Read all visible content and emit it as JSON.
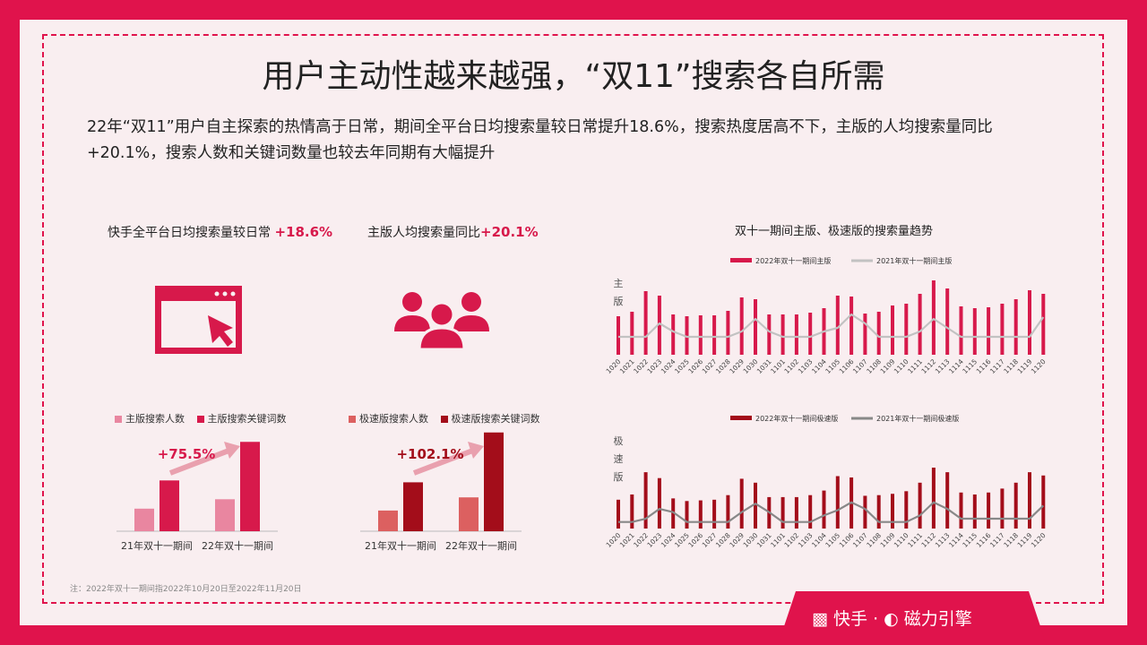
{
  "title": "用户主动性越来越强，“双11”搜索各自所需",
  "intro": "22年“双11”用户自主探索的热情高于日常，期间全平台日均搜索量较日常提升18.6%，搜索热度居高不下，主版的人均搜索量同比+20.1%，搜索人数和关键词数量也较去年同期有大幅提升",
  "kpi1": {
    "label": "快手全平台日均搜索量较日常 ",
    "value": "+18.6%"
  },
  "kpi2": {
    "label": "主版人均搜索量同比",
    "value": "+20.1%"
  },
  "icons": {
    "kpi1": "browser-cursor-icon",
    "kpi2": "user-group-icon"
  },
  "note": "注：2022年双十一期间指2022年10月20日至2022年11月20日",
  "footer": {
    "brand1": "快手",
    "sep": "·",
    "brand2": "磁力引擎"
  },
  "colors": {
    "brand": "#e0134c",
    "main": "#d7194b",
    "main_light": "#e986a0",
    "speed": "#a30d1a",
    "speed_light": "#dc6060",
    "line_main": "#bdbdbd",
    "line_speed": "#888888"
  },
  "chart_data": [
    {
      "type": "bar",
      "legend": [
        "主版搜索人数",
        "主版搜索关键词数"
      ],
      "categories": [
        "21年双十一期间",
        "22年双十一期间"
      ],
      "series": [
        {
          "name": "主版搜索人数",
          "values": [
            24,
            34
          ]
        },
        {
          "name": "主版搜索关键词数",
          "values": [
            54,
            95
          ]
        }
      ],
      "annotation": "+75.5%"
    },
    {
      "type": "bar",
      "legend": [
        "极速版搜索人数",
        "极速版搜索关键词数"
      ],
      "categories": [
        "21年双十一期间",
        "22年双十一期间"
      ],
      "series": [
        {
          "name": "极速版搜索人数",
          "values": [
            22,
            36
          ]
        },
        {
          "name": "极速版搜索关键词数",
          "values": [
            52,
            105
          ]
        }
      ],
      "annotation": "+102.1%"
    },
    {
      "type": "bar",
      "title": "双十一期间主版、极速版的搜索量趋势",
      "ylabel": "主版",
      "x": [
        "1020",
        "1021",
        "1022",
        "1023",
        "1024",
        "1025",
        "1026",
        "1027",
        "1028",
        "1029",
        "1030",
        "1031",
        "1101",
        "1102",
        "1103",
        "1104",
        "1105",
        "1106",
        "1107",
        "1108",
        "1109",
        "1110",
        "1111",
        "1112",
        "1113",
        "1114",
        "1115",
        "1116",
        "1117",
        "1118",
        "1119",
        "1120"
      ],
      "series": [
        {
          "name": "2022年双十一期间主版",
          "kind": "bar",
          "values": [
            43,
            48,
            71,
            66,
            45,
            43,
            44,
            44,
            49,
            64,
            62,
            45,
            45,
            45,
            47,
            52,
            66,
            65,
            46,
            48,
            55,
            57,
            68,
            83,
            74,
            54,
            52,
            53,
            57,
            62,
            72,
            68
          ]
        },
        {
          "name": "2021年双十一期间主版",
          "kind": "line",
          "values": [
            20,
            20,
            20,
            35,
            26,
            20,
            20,
            20,
            20,
            26,
            40,
            26,
            20,
            20,
            20,
            26,
            30,
            45,
            35,
            20,
            20,
            20,
            26,
            40,
            30,
            20,
            20,
            20,
            20,
            20,
            20,
            42
          ]
        }
      ]
    },
    {
      "type": "bar",
      "ylabel": "极速版",
      "x": [
        "1020",
        "1021",
        "1022",
        "1023",
        "1024",
        "1025",
        "1026",
        "1027",
        "1028",
        "1029",
        "1030",
        "1031",
        "1101",
        "1102",
        "1103",
        "1104",
        "1105",
        "1106",
        "1107",
        "1108",
        "1109",
        "1110",
        "1111",
        "1112",
        "1113",
        "1114",
        "1115",
        "1116",
        "1117",
        "1118",
        "1119",
        "1120"
      ],
      "series": [
        {
          "name": "2022年双十一期间极速版",
          "kind": "bar",
          "values": [
            44,
            52,
            86,
            77,
            46,
            42,
            43,
            44,
            51,
            76,
            70,
            48,
            48,
            48,
            51,
            58,
            80,
            78,
            50,
            51,
            53,
            57,
            70,
            93,
            86,
            55,
            52,
            55,
            61,
            70,
            86,
            81
          ]
        },
        {
          "name": "2021年双十一期间极速版",
          "kind": "line",
          "values": [
            10,
            10,
            15,
            30,
            25,
            10,
            10,
            10,
            10,
            25,
            38,
            25,
            10,
            10,
            10,
            20,
            28,
            40,
            30,
            10,
            10,
            10,
            20,
            40,
            30,
            15,
            15,
            15,
            15,
            15,
            15,
            35
          ]
        }
      ]
    }
  ]
}
